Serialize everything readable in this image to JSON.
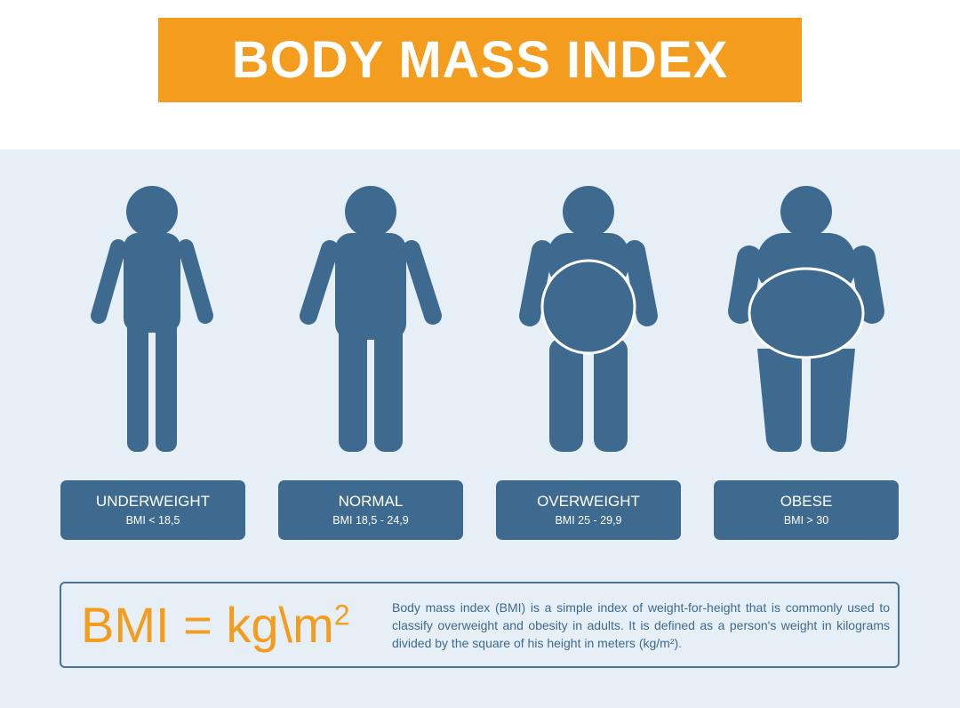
{
  "title": "BODY MASS INDEX",
  "colors": {
    "accent": "#f39c1e",
    "figure": "#3e6a8f",
    "background": "#e6eff6"
  },
  "categories": [
    {
      "name": "UNDERWEIGHT",
      "range": "BMI < 18,5"
    },
    {
      "name": "NORMAL",
      "range": "BMI 18,5 - 24,9"
    },
    {
      "name": "OVERWEIGHT",
      "range": "BMI 25 - 29,9"
    },
    {
      "name": "OBESE",
      "range": "BMI > 30"
    }
  ],
  "formula": {
    "text": "BMI = kg\\m",
    "exponent": "2"
  },
  "description": "Body mass index (BMI) is a simple index of weight-for-height that is commonly used to classify overweight and obesity in adults. It is defined as a person's weight in kilograms divided by the square of his height in meters (kg/m²)."
}
